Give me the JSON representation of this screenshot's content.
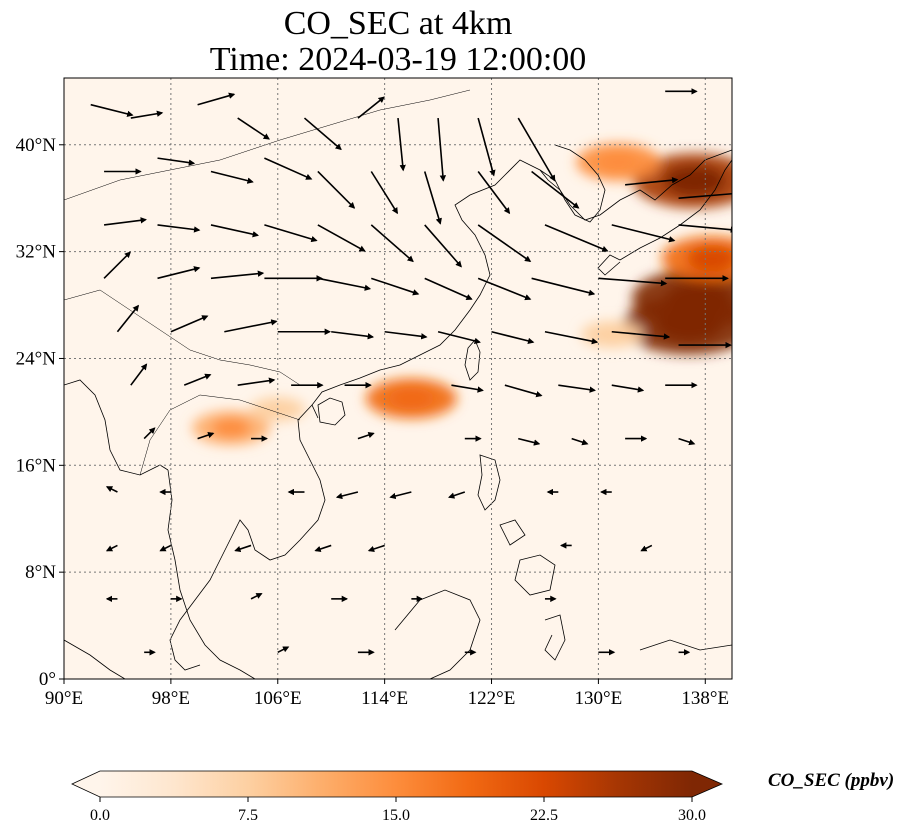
{
  "title": {
    "line1": "CO_SEC at 4km",
    "line2": "Time: 2024-03-19 12:00:00"
  },
  "map": {
    "lon_range": [
      90,
      140
    ],
    "lat_range": [
      0,
      45
    ],
    "lon_ticks": [
      {
        "value": 90,
        "label": "90°E"
      },
      {
        "value": 98,
        "label": "98°E"
      },
      {
        "value": 106,
        "label": "106°E"
      },
      {
        "value": 114,
        "label": "114°E"
      },
      {
        "value": 122,
        "label": "122°E"
      },
      {
        "value": 130,
        "label": "130°E"
      },
      {
        "value": 138,
        "label": "138°E"
      }
    ],
    "lat_ticks": [
      {
        "value": 0,
        "label": "0°"
      },
      {
        "value": 8,
        "label": "8°N"
      },
      {
        "value": 16,
        "label": "16°N"
      },
      {
        "value": 24,
        "label": "24°N"
      },
      {
        "value": 32,
        "label": "32°N"
      },
      {
        "value": 40,
        "label": "40°N"
      }
    ],
    "gridlines": true,
    "background_color": "#fff5eb",
    "coastline_color": "#000000",
    "plumes": [
      {
        "lon": 137.5,
        "lat": 28.5,
        "value": 30
      },
      {
        "lon": 136.8,
        "lat": 26.5,
        "value": 30
      },
      {
        "lon": 138.5,
        "lat": 31.5,
        "value": 20
      },
      {
        "lon": 137.2,
        "lat": 37.3,
        "value": 27
      },
      {
        "lon": 131.5,
        "lat": 38.7,
        "value": 15
      },
      {
        "lon": 116.0,
        "lat": 21.0,
        "value": 17
      },
      {
        "lon": 102.5,
        "lat": 18.8,
        "value": 13
      },
      {
        "lon": 106.0,
        "lat": 20.2,
        "value": 6
      },
      {
        "lon": 131.0,
        "lat": 25.8,
        "value": 8
      }
    ],
    "wind_vectors": [
      {
        "lon": 92,
        "lat": 43,
        "u": 8,
        "v": -2
      },
      {
        "lon": 95,
        "lat": 42,
        "u": 6,
        "v": 1
      },
      {
        "lon": 100,
        "lat": 43,
        "u": 7,
        "v": 2
      },
      {
        "lon": 103,
        "lat": 42,
        "u": 6,
        "v": -4
      },
      {
        "lon": 108,
        "lat": 42,
        "u": 7,
        "v": -6
      },
      {
        "lon": 112,
        "lat": 42,
        "u": 5,
        "v": 4
      },
      {
        "lon": 115,
        "lat": 42,
        "u": 1,
        "v": -10
      },
      {
        "lon": 118,
        "lat": 42,
        "u": 1,
        "v": -12
      },
      {
        "lon": 121,
        "lat": 42,
        "u": 3,
        "v": -11
      },
      {
        "lon": 124,
        "lat": 42,
        "u": 7,
        "v": -12
      },
      {
        "lon": 135,
        "lat": 44,
        "u": 6,
        "v": 0
      },
      {
        "lon": 93,
        "lat": 38,
        "u": 7,
        "v": 0
      },
      {
        "lon": 97,
        "lat": 39,
        "u": 7,
        "v": -1
      },
      {
        "lon": 101,
        "lat": 38,
        "u": 8,
        "v": -2
      },
      {
        "lon": 105,
        "lat": 39,
        "u": 9,
        "v": -4
      },
      {
        "lon": 109,
        "lat": 38,
        "u": 7,
        "v": -7
      },
      {
        "lon": 113,
        "lat": 38,
        "u": 5,
        "v": -8
      },
      {
        "lon": 117,
        "lat": 38,
        "u": 3,
        "v": -10
      },
      {
        "lon": 121,
        "lat": 38,
        "u": 6,
        "v": -8
      },
      {
        "lon": 125,
        "lat": 38,
        "u": 9,
        "v": -7
      },
      {
        "lon": 132,
        "lat": 37,
        "u": 10,
        "v": 1
      },
      {
        "lon": 136,
        "lat": 36,
        "u": 12,
        "v": 1
      },
      {
        "lon": 93,
        "lat": 34,
        "u": 8,
        "v": 1
      },
      {
        "lon": 97,
        "lat": 34,
        "u": 8,
        "v": -1
      },
      {
        "lon": 101,
        "lat": 34,
        "u": 9,
        "v": -2
      },
      {
        "lon": 105,
        "lat": 34,
        "u": 10,
        "v": -3
      },
      {
        "lon": 109,
        "lat": 34,
        "u": 9,
        "v": -5
      },
      {
        "lon": 113,
        "lat": 34,
        "u": 8,
        "v": -7
      },
      {
        "lon": 117,
        "lat": 34,
        "u": 7,
        "v": -8
      },
      {
        "lon": 121,
        "lat": 34,
        "u": 10,
        "v": -7
      },
      {
        "lon": 126,
        "lat": 34,
        "u": 12,
        "v": -5
      },
      {
        "lon": 131,
        "lat": 34,
        "u": 12,
        "v": -3
      },
      {
        "lon": 136,
        "lat": 34,
        "u": 11,
        "v": -1
      },
      {
        "lon": 93,
        "lat": 30,
        "u": 5,
        "v": 5
      },
      {
        "lon": 97,
        "lat": 30,
        "u": 8,
        "v": 2
      },
      {
        "lon": 101,
        "lat": 30,
        "u": 10,
        "v": 1
      },
      {
        "lon": 105,
        "lat": 30,
        "u": 11,
        "v": 0
      },
      {
        "lon": 109,
        "lat": 30,
        "u": 10,
        "v": -2
      },
      {
        "lon": 113,
        "lat": 30,
        "u": 9,
        "v": -3
      },
      {
        "lon": 117,
        "lat": 30,
        "u": 9,
        "v": -4
      },
      {
        "lon": 121,
        "lat": 30,
        "u": 10,
        "v": -4
      },
      {
        "lon": 125,
        "lat": 30,
        "u": 12,
        "v": -3
      },
      {
        "lon": 130,
        "lat": 30,
        "u": 13,
        "v": -1
      },
      {
        "lon": 135,
        "lat": 30,
        "u": 12,
        "v": 0
      },
      {
        "lon": 94,
        "lat": 26,
        "u": 4,
        "v": 5
      },
      {
        "lon": 98,
        "lat": 26,
        "u": 7,
        "v": 3
      },
      {
        "lon": 102,
        "lat": 26,
        "u": 10,
        "v": 2
      },
      {
        "lon": 106,
        "lat": 26,
        "u": 10,
        "v": 0
      },
      {
        "lon": 110,
        "lat": 26,
        "u": 8,
        "v": -1
      },
      {
        "lon": 114,
        "lat": 26,
        "u": 8,
        "v": -1
      },
      {
        "lon": 118,
        "lat": 26,
        "u": 8,
        "v": -2
      },
      {
        "lon": 122,
        "lat": 26,
        "u": 8,
        "v": -2
      },
      {
        "lon": 126,
        "lat": 26,
        "u": 10,
        "v": -2
      },
      {
        "lon": 131,
        "lat": 26,
        "u": 11,
        "v": -1
      },
      {
        "lon": 136,
        "lat": 25,
        "u": 10,
        "v": 0
      },
      {
        "lon": 95,
        "lat": 22,
        "u": 3,
        "v": 4
      },
      {
        "lon": 99,
        "lat": 22,
        "u": 5,
        "v": 2
      },
      {
        "lon": 103,
        "lat": 22,
        "u": 7,
        "v": 1
      },
      {
        "lon": 107,
        "lat": 22,
        "u": 6,
        "v": 0
      },
      {
        "lon": 111,
        "lat": 22,
        "u": 5,
        "v": 0
      },
      {
        "lon": 119,
        "lat": 22,
        "u": 6,
        "v": -1
      },
      {
        "lon": 123,
        "lat": 22,
        "u": 7,
        "v": -2
      },
      {
        "lon": 127,
        "lat": 22,
        "u": 7,
        "v": -1
      },
      {
        "lon": 131,
        "lat": 22,
        "u": 6,
        "v": -1
      },
      {
        "lon": 135,
        "lat": 22,
        "u": 6,
        "v": 0
      },
      {
        "lon": 96,
        "lat": 18,
        "u": 2,
        "v": 2
      },
      {
        "lon": 100,
        "lat": 18,
        "u": 3,
        "v": 1
      },
      {
        "lon": 104,
        "lat": 18,
        "u": 3,
        "v": 0
      },
      {
        "lon": 112,
        "lat": 18,
        "u": 3,
        "v": 1
      },
      {
        "lon": 120,
        "lat": 18,
        "u": 3,
        "v": 0
      },
      {
        "lon": 124,
        "lat": 18,
        "u": 4,
        "v": -1
      },
      {
        "lon": 128,
        "lat": 18,
        "u": 3,
        "v": -1
      },
      {
        "lon": 132,
        "lat": 18,
        "u": 4,
        "v": 0
      },
      {
        "lon": 136,
        "lat": 18,
        "u": 3,
        "v": -1
      },
      {
        "lon": 94,
        "lat": 14,
        "u": -2,
        "v": 1
      },
      {
        "lon": 98,
        "lat": 14,
        "u": -2,
        "v": 0
      },
      {
        "lon": 108,
        "lat": 14,
        "u": -3,
        "v": 0
      },
      {
        "lon": 112,
        "lat": 14,
        "u": -4,
        "v": -1
      },
      {
        "lon": 116,
        "lat": 14,
        "u": -4,
        "v": -1
      },
      {
        "lon": 120,
        "lat": 14,
        "u": -3,
        "v": -1
      },
      {
        "lon": 127,
        "lat": 14,
        "u": -2,
        "v": 0
      },
      {
        "lon": 131,
        "lat": 14,
        "u": -2,
        "v": 0
      },
      {
        "lon": 94,
        "lat": 10,
        "u": -2,
        "v": -1
      },
      {
        "lon": 98,
        "lat": 10,
        "u": -2,
        "v": -1
      },
      {
        "lon": 104,
        "lat": 10,
        "u": -3,
        "v": -1
      },
      {
        "lon": 110,
        "lat": 10,
        "u": -3,
        "v": -1
      },
      {
        "lon": 114,
        "lat": 10,
        "u": -3,
        "v": -1
      },
      {
        "lon": 128,
        "lat": 10,
        "u": -2,
        "v": 0
      },
      {
        "lon": 134,
        "lat": 10,
        "u": -2,
        "v": -1
      },
      {
        "lon": 94,
        "lat": 6,
        "u": -2,
        "v": 0
      },
      {
        "lon": 98,
        "lat": 6,
        "u": 2,
        "v": 0
      },
      {
        "lon": 104,
        "lat": 6,
        "u": 2,
        "v": 1
      },
      {
        "lon": 110,
        "lat": 6,
        "u": 3,
        "v": 0
      },
      {
        "lon": 116,
        "lat": 6,
        "u": 2,
        "v": 0
      },
      {
        "lon": 126,
        "lat": 6,
        "u": 2,
        "v": 0
      },
      {
        "lon": 96,
        "lat": 2,
        "u": 2,
        "v": 0
      },
      {
        "lon": 106,
        "lat": 2,
        "u": 2,
        "v": 1
      },
      {
        "lon": 112,
        "lat": 2,
        "u": 3,
        "v": 0
      },
      {
        "lon": 120,
        "lat": 2,
        "u": 2,
        "v": 0
      },
      {
        "lon": 130,
        "lat": 2,
        "u": 3,
        "v": 0
      },
      {
        "lon": 136,
        "lat": 2,
        "u": 2,
        "v": 0
      }
    ]
  },
  "colorbar": {
    "label": "CO_SEC (ppbv)",
    "min": 0,
    "max": 30,
    "extend": "both",
    "ticks": [
      "0.0",
      "7.5",
      "15.0",
      "22.5",
      "30.0"
    ],
    "colormap": [
      "#fff5eb",
      "#fee6ce",
      "#fdd0a2",
      "#fdae6b",
      "#fd8d3c",
      "#f16913",
      "#d94801",
      "#a63603",
      "#7f2704"
    ]
  }
}
